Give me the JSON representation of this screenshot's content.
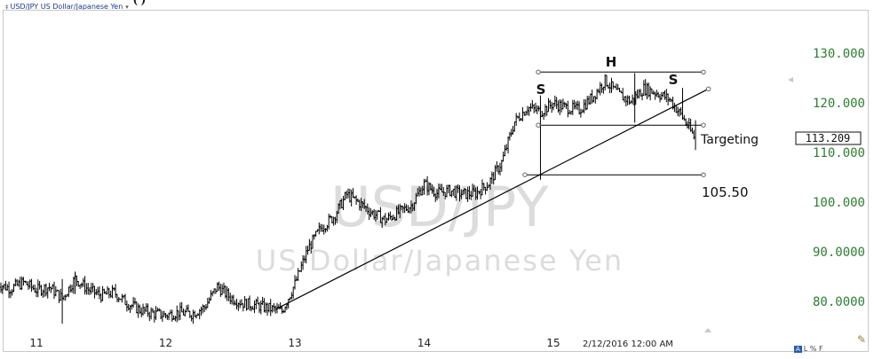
{
  "header": {
    "title": "USD/JPY US Dollar/Japanese Yen",
    "partial_heading": "(                  )"
  },
  "watermark": {
    "symbol": "USD/JPY",
    "name": "US Dollar/Japanese Yen"
  },
  "timestamp": "2/12/2016 12:00 AM",
  "footer_badge": {
    "box": "A",
    "rest": "L % F"
  },
  "colors": {
    "price_axis": "#2e7d32",
    "bars": "#000000",
    "watermark": "#d9d9d9"
  },
  "icons": [
    "ticker-icon",
    "caret-down-icon",
    "draw-tool-icon",
    "scroll-left-arrow-icon",
    "scroll-up-arrow-icon"
  ],
  "chart_data": {
    "type": "ohlc",
    "x_axis": {
      "type": "time",
      "ticks": [
        "11",
        "12",
        "13",
        "14",
        "15"
      ]
    },
    "y_axis": {
      "position": "right",
      "ticks": [
        "130.000",
        "120.000",
        "110.000",
        "100.000",
        "90.0000",
        "80.0000"
      ],
      "range": [
        75,
        134
      ]
    },
    "grid": false,
    "annotations": {
      "head_shoulders": {
        "left_shoulder": "S",
        "head": "H",
        "right_shoulder": "S"
      },
      "target_label": "Targeting",
      "target_value": "113.209",
      "target_level_label": "105.50",
      "neckline": 115.5,
      "head_top": 126.2,
      "target_level": 105.5,
      "trendline": {
        "start": {
          "x": 12.85,
          "y": 78.4
        },
        "end": {
          "x": 16.2,
          "y": 122.8
        }
      }
    },
    "series": [
      {
        "name": "USD/JPY",
        "points": [
          [
            10.7,
            83.5
          ],
          [
            10.8,
            82.6
          ],
          [
            10.9,
            83.8
          ],
          [
            11.0,
            82.3
          ],
          [
            11.1,
            82.9
          ],
          [
            11.2,
            80.6
          ],
          [
            11.3,
            84.6
          ],
          [
            11.4,
            82.4
          ],
          [
            11.5,
            81.2
          ],
          [
            11.6,
            81.8
          ],
          [
            11.7,
            79.7
          ],
          [
            11.8,
            78.3
          ],
          [
            11.9,
            77.6
          ],
          [
            12.0,
            77.2
          ],
          [
            12.1,
            77.8
          ],
          [
            12.2,
            77.5
          ],
          [
            12.3,
            78.8
          ],
          [
            12.4,
            83.0
          ],
          [
            12.5,
            80.8
          ],
          [
            12.6,
            79.6
          ],
          [
            12.7,
            79.2
          ],
          [
            12.8,
            78.6
          ],
          [
            12.9,
            78.0
          ],
          [
            13.0,
            83.5
          ],
          [
            13.1,
            90.5
          ],
          [
            13.2,
            94.8
          ],
          [
            13.3,
            97.0
          ],
          [
            13.4,
            101.5
          ],
          [
            13.5,
            99.8
          ],
          [
            13.6,
            97.8
          ],
          [
            13.7,
            96.4
          ],
          [
            13.8,
            97.9
          ],
          [
            13.9,
            99.3
          ],
          [
            14.0,
            103.6
          ],
          [
            14.1,
            101.8
          ],
          [
            14.2,
            102.3
          ],
          [
            14.3,
            101.6
          ],
          [
            14.4,
            101.8
          ],
          [
            14.5,
            103.8
          ],
          [
            14.6,
            108.0
          ],
          [
            14.7,
            116.2
          ],
          [
            14.8,
            119.1
          ],
          [
            14.9,
            118.2
          ],
          [
            15.0,
            119.9
          ],
          [
            15.1,
            119.0
          ],
          [
            15.2,
            118.6
          ],
          [
            15.3,
            121.1
          ],
          [
            15.4,
            124.5
          ],
          [
            15.5,
            121.8
          ],
          [
            15.6,
            120.2
          ],
          [
            15.7,
            122.9
          ],
          [
            15.8,
            122.0
          ],
          [
            15.9,
            120.7
          ],
          [
            16.0,
            117.1
          ],
          [
            16.1,
            112.6
          ]
        ]
      }
    ]
  }
}
